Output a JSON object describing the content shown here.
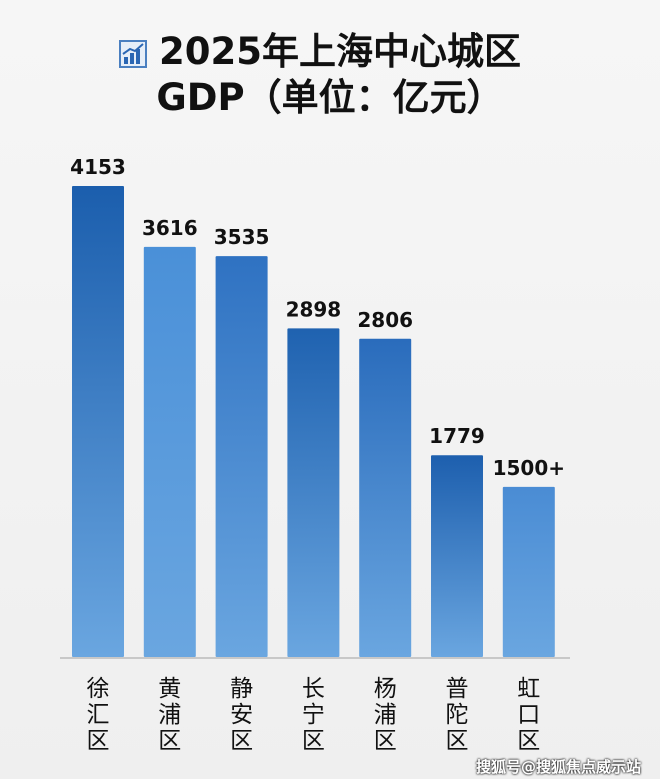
{
  "chart_data": {
    "type": "bar",
    "title": "2025年上海中心城区",
    "subtitle": "GDP（单位：亿元）",
    "categories": [
      "徐汇区",
      "黄浦区",
      "静安区",
      "长宁区",
      "杨浦区",
      "普陀区",
      "虹口区"
    ],
    "values": [
      4153,
      3616,
      3535,
      2898,
      2806,
      1779,
      1500
    ],
    "data_labels": [
      "4153",
      "3616",
      "3535",
      "2898",
      "2806",
      "1779",
      "1500+"
    ],
    "xlabel": "",
    "ylabel": "",
    "ylim": [
      0,
      4153
    ],
    "grid": false,
    "bar_colors": [
      "#1b5ead",
      "#4a90d8",
      "#2f72c2",
      "#1f62b0",
      "#2a6cbc",
      "#1d5fae",
      "#4a8cd4"
    ]
  },
  "title_icon": "bar-chart-icon",
  "watermark": "搜狐号@搜狐焦点威示站"
}
